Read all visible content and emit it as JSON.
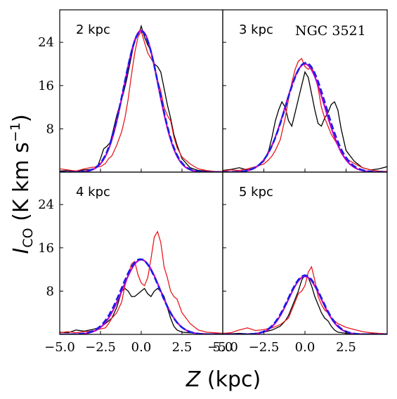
{
  "chart_data": {
    "type": "line",
    "galaxy": "NGC 3521",
    "xlabel": "Z (kpc)",
    "ylabel": "I_CO (K km s^-1)",
    "xlim": [
      -5.0,
      5.0
    ],
    "ylim": [
      0,
      30
    ],
    "xticks": [
      -5.0,
      -2.5,
      0.0,
      2.5,
      5.0
    ],
    "xtick_labels": [
      "−5.0",
      "−2.5",
      "0.0",
      "2.5",
      "5.0"
    ],
    "xtick_labels_right": [
      "−5.0",
      "−2.5",
      "0.0",
      "2.5"
    ],
    "yticks": [
      8,
      16,
      24
    ],
    "ytick_labels": [
      "8",
      "16",
      "24"
    ],
    "colors": {
      "black": "#000000",
      "red": "#e8191c",
      "magenta": "#c000c8",
      "blue": "#1c1ce8"
    },
    "panels": [
      {
        "label": "2 kpc",
        "series": [
          {
            "color": "black",
            "x": [
              -5,
              -4.5,
              -4,
              -3.5,
              -3,
              -2.7,
              -2.5,
              -2.3,
              -2.1,
              -1.9,
              -1.7,
              -1.5,
              -1.3,
              -1.1,
              -0.9,
              -0.7,
              -0.5,
              -0.3,
              -0.1,
              0.0,
              0.2,
              0.4,
              0.6,
              0.8,
              1.0,
              1.2,
              1.4,
              1.6,
              1.8,
              2.0,
              2.2,
              2.5,
              3,
              3.5,
              4,
              4.5,
              5
            ],
            "y": [
              0.2,
              0.3,
              0.2,
              0.4,
              0.5,
              0.9,
              2.5,
              4.3,
              4.8,
              5.5,
              8.0,
              10.5,
              12.5,
              14.5,
              17.0,
              20.0,
              23.0,
              25.0,
              26.0,
              27.0,
              25.0,
              23.5,
              22.5,
              20.0,
              19.5,
              18.5,
              15.5,
              12.5,
              10.0,
              7.0,
              5.0,
              2.5,
              0.8,
              0.3,
              0.2,
              0.1,
              0.1
            ]
          },
          {
            "color": "red",
            "x": [
              -5,
              -4.5,
              -4,
              -3.5,
              -3,
              -2.5,
              -2.2,
              -2.0,
              -1.8,
              -1.5,
              -1.2,
              -1.0,
              -0.8,
              -0.6,
              -0.4,
              -0.2,
              0.0,
              0.2,
              0.4,
              0.6,
              0.8,
              1.0,
              1.2,
              1.4,
              1.6,
              1.8,
              2.0,
              2.2,
              2.5,
              3,
              3.5,
              4,
              4.5,
              5
            ],
            "y": [
              0.6,
              0.4,
              0.2,
              0.6,
              0.9,
              1.0,
              1.6,
              2.5,
              3.0,
              5.0,
              7.5,
              10.0,
              13.5,
              18.0,
              22.0,
              25.0,
              26.0,
              24.0,
              22.0,
              21.0,
              20.0,
              17.0,
              15.0,
              12.0,
              10.5,
              9.5,
              6.5,
              4.5,
              2.8,
              1.5,
              0.6,
              0.3,
              0.1,
              0.1
            ]
          },
          {
            "color": "magenta",
            "gaussian": {
              "amp": 26.2,
              "mu": 0.0,
              "sigma": 1.05
            }
          },
          {
            "color": "blue",
            "dashed": true,
            "gaussian": {
              "amp": 26.0,
              "mu": 0.0,
              "sigma": 1.07
            }
          }
        ]
      },
      {
        "label": "3 kpc",
        "series": [
          {
            "color": "black",
            "x": [
              -5,
              -4.5,
              -4,
              -3.5,
              -3,
              -2.5,
              -2.2,
              -2.0,
              -1.8,
              -1.6,
              -1.4,
              -1.2,
              -1.0,
              -0.8,
              -0.6,
              -0.4,
              -0.2,
              0.0,
              0.2,
              0.4,
              0.6,
              0.8,
              1.0,
              1.2,
              1.4,
              1.6,
              1.8,
              2.0,
              2.2,
              2.5,
              3,
              3.5,
              4,
              4.5,
              5
            ],
            "y": [
              0.3,
              0.5,
              0.8,
              0.4,
              0.8,
              2.0,
              4.0,
              6.5,
              9.5,
              11.5,
              13.0,
              12.0,
              9.5,
              8.5,
              11.0,
              13.5,
              16.0,
              18.5,
              17.5,
              14.5,
              11.5,
              9.0,
              8.5,
              10.0,
              11.0,
              12.5,
              13.0,
              11.5,
              8.0,
              4.0,
              2.0,
              0.8,
              0.4,
              0.6,
              1.0
            ]
          },
          {
            "color": "red",
            "x": [
              -5,
              -4.5,
              -4,
              -3.5,
              -3,
              -2.5,
              -2.2,
              -2.0,
              -1.8,
              -1.5,
              -1.2,
              -1.0,
              -0.8,
              -0.6,
              -0.4,
              -0.2,
              0.0,
              0.2,
              0.4,
              0.6,
              0.8,
              1.0,
              1.2,
              1.4,
              1.6,
              1.8,
              2.0,
              2.2,
              2.5,
              3,
              3.5,
              4,
              4.5,
              5
            ],
            "y": [
              0.2,
              0.4,
              0.3,
              0.6,
              1.0,
              1.5,
              2.3,
              3.0,
              4.0,
              6.0,
              10.0,
              13.5,
              16.5,
              19.0,
              20.5,
              21.0,
              19.5,
              19.0,
              19.5,
              18.0,
              15.5,
              12.0,
              10.0,
              8.5,
              7.0,
              6.0,
              5.0,
              3.5,
              2.5,
              1.6,
              0.8,
              0.4,
              0.2,
              0.1
            ]
          },
          {
            "color": "magenta",
            "gaussian": {
              "amp": 20.0,
              "mu": 0.0,
              "sigma": 1.2
            }
          },
          {
            "color": "blue",
            "dashed": true,
            "gaussian": {
              "amp": 20.2,
              "mu": 0.05,
              "sigma": 1.22
            }
          }
        ]
      },
      {
        "label": "4 kpc",
        "series": [
          {
            "color": "black",
            "x": [
              -5,
              -4.5,
              -4,
              -3.5,
              -3,
              -2.5,
              -2.2,
              -2.0,
              -1.8,
              -1.5,
              -1.2,
              -1.0,
              -0.8,
              -0.6,
              -0.4,
              -0.2,
              0.0,
              0.2,
              0.4,
              0.6,
              0.8,
              1.0,
              1.2,
              1.4,
              1.6,
              1.8,
              2.0,
              2.2,
              2.5,
              3,
              3.5,
              4,
              4.5,
              5
            ],
            "y": [
              0.4,
              0.3,
              0.8,
              0.6,
              0.9,
              1.3,
              2.0,
              2.5,
              3.0,
              5.0,
              8.0,
              8.5,
              8.0,
              7.0,
              7.0,
              7.5,
              8.0,
              8.5,
              7.5,
              7.0,
              8.0,
              8.5,
              8.0,
              7.0,
              5.0,
              3.0,
              1.5,
              0.8,
              0.4,
              0.3,
              0.2,
              0.1,
              0.1,
              0.2
            ]
          },
          {
            "color": "red",
            "x": [
              -5,
              -4.5,
              -4,
              -3.5,
              -3,
              -2.5,
              -2.2,
              -2.0,
              -1.8,
              -1.5,
              -1.2,
              -1.0,
              -0.8,
              -0.6,
              -0.4,
              -0.2,
              0.0,
              0.2,
              0.4,
              0.6,
              0.8,
              1.0,
              1.2,
              1.4,
              1.6,
              1.8,
              2.0,
              2.2,
              2.5,
              3,
              3.5,
              4,
              4.5,
              5
            ],
            "y": [
              0.3,
              0.5,
              0.3,
              0.5,
              0.6,
              1.0,
              1.2,
              2.0,
              3.0,
              4.0,
              6.0,
              9.0,
              11.0,
              13.0,
              13.5,
              11.0,
              9.5,
              9.0,
              10.5,
              14.0,
              18.0,
              19.0,
              17.0,
              12.5,
              10.5,
              8.0,
              7.0,
              6.5,
              4.0,
              2.0,
              0.8,
              0.4,
              0.3,
              0.2
            ]
          },
          {
            "color": "magenta",
            "gaussian": {
              "amp": 13.8,
              "mu": 0.0,
              "sigma": 1.15
            }
          },
          {
            "color": "blue",
            "dashed": true,
            "gaussian": {
              "amp": 13.9,
              "mu": -0.05,
              "sigma": 1.17
            }
          }
        ]
      },
      {
        "label": "5 kpc",
        "series": [
          {
            "color": "black",
            "x": [
              -5,
              -4.5,
              -4,
              -3.5,
              -3,
              -2.5,
              -2.0,
              -1.5,
              -1.2,
              -1.0,
              -0.8,
              -0.6,
              -0.4,
              -0.2,
              0.0,
              0.2,
              0.4,
              0.6,
              0.8,
              1.0,
              1.2,
              1.4,
              1.6,
              1.8,
              2.0,
              2.5,
              3,
              3.5,
              4,
              4.5,
              5
            ],
            "y": [
              0.1,
              0.1,
              0.2,
              0.1,
              0.2,
              0.4,
              0.8,
              1.5,
              2.5,
              3.5,
              5.0,
              6.5,
              8.0,
              10.0,
              11.0,
              10.5,
              9.0,
              7.0,
              5.5,
              4.0,
              3.0,
              2.5,
              1.5,
              0.8,
              0.4,
              0.2,
              0.1,
              0.1,
              0.1,
              0.1,
              0.1
            ]
          },
          {
            "color": "red",
            "x": [
              -5,
              -4.5,
              -4,
              -3.5,
              -3,
              -2.5,
              -2.0,
              -1.5,
              -1.2,
              -1.0,
              -0.8,
              -0.6,
              -0.4,
              -0.2,
              0.0,
              0.2,
              0.4,
              0.6,
              0.8,
              1.0,
              1.2,
              1.4,
              1.6,
              1.8,
              2.0,
              2.5,
              3,
              3.5,
              4,
              4.5,
              5
            ],
            "y": [
              0.2,
              0.3,
              0.8,
              1.2,
              0.7,
              0.9,
              1.2,
              1.8,
              2.5,
              3.0,
              4.5,
              6.0,
              7.5,
              8.0,
              9.0,
              11.5,
              12.5,
              10.0,
              7.0,
              5.5,
              4.5,
              4.0,
              3.0,
              2.5,
              2.0,
              1.3,
              0.9,
              0.5,
              0.3,
              0.2,
              0.1
            ]
          },
          {
            "color": "magenta",
            "gaussian": {
              "amp": 10.7,
              "mu": 0.0,
              "sigma": 1.0
            }
          },
          {
            "color": "blue",
            "dashed": true,
            "gaussian": {
              "amp": 10.9,
              "mu": 0.0,
              "sigma": 1.02
            }
          }
        ]
      }
    ]
  }
}
